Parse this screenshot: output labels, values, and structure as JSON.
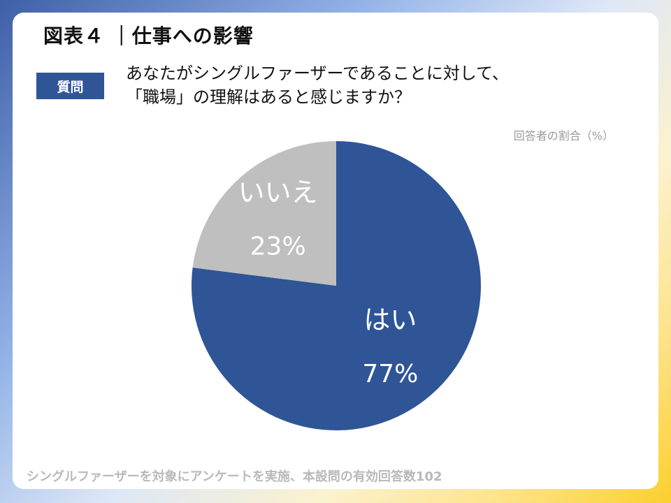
{
  "title": "図表４ ｜仕事への影響",
  "question": {
    "badge": "質問",
    "line1": "あなたがシングルファーザーであることに対して、",
    "line2": "「職場」の理解はあると感じますか？"
  },
  "unit_note": "回答者の割合（%）",
  "footer": "シングルファーザーを対象にアンケートを実施、本設問の有効回答数102",
  "colors": {
    "yes": "#2f5597",
    "no": "#bfbfbf"
  },
  "chart_data": {
    "type": "pie",
    "title": "「職場」の理解はあると感じますか？",
    "unit": "%",
    "slices": [
      {
        "label": "はい",
        "value": 77,
        "display": "77%"
      },
      {
        "label": "いいえ",
        "value": 23,
        "display": "23%"
      }
    ]
  }
}
